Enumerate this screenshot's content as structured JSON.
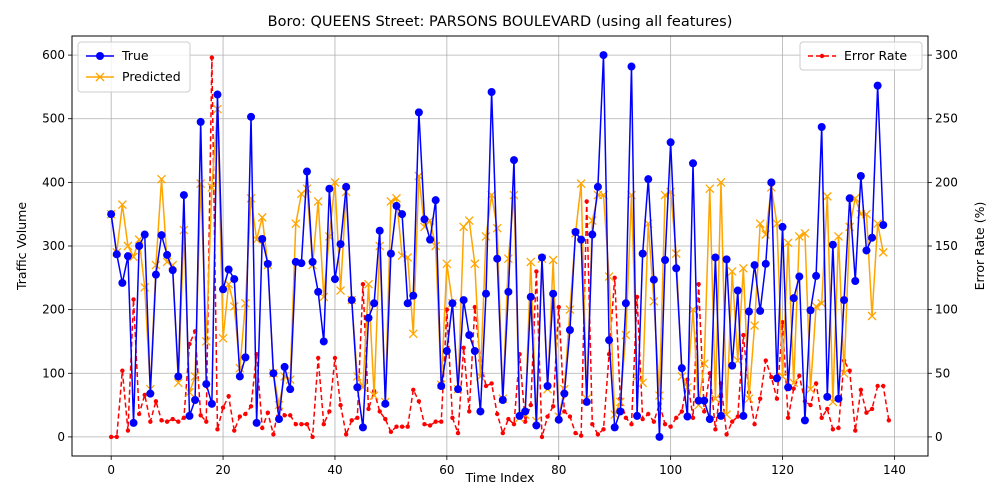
{
  "chart_data": {
    "type": "line",
    "title": "Boro: QUEENS Street: PARSONS BOULEVARD (using all features)",
    "xlabel": "Time Index",
    "ylabel": "Traffic Volume",
    "y2label": "Error Rate (%)",
    "xlim": [
      -7,
      146
    ],
    "ylim": [
      -30,
      630
    ],
    "y2lim": [
      -15,
      315
    ],
    "xticks": [
      0,
      20,
      40,
      60,
      80,
      100,
      120,
      140
    ],
    "yticks": [
      0,
      100,
      200,
      300,
      400,
      500,
      600
    ],
    "y2ticks": [
      0,
      50,
      100,
      150,
      200,
      250,
      300
    ],
    "grid": true,
    "legend_left": "upper-left",
    "legend_right": "upper-right",
    "series": [
      {
        "name": "True",
        "color": "#0000ff",
        "axis": "left",
        "marker": "circle",
        "line": "solid",
        "values": [
          350,
          287,
          242,
          284,
          22,
          300,
          318,
          68,
          255,
          317,
          286,
          262,
          95,
          380,
          33,
          58,
          495,
          83,
          52,
          538,
          232,
          263,
          248,
          95,
          125,
          503,
          22,
          311,
          272,
          100,
          28,
          110,
          75,
          275,
          273,
          417,
          275,
          228,
          150,
          390,
          248,
          303,
          393,
          215,
          78,
          15,
          187,
          210,
          324,
          52,
          288,
          363,
          350,
          210,
          222,
          510,
          342,
          310,
          372,
          80,
          135,
          210,
          75,
          215,
          160,
          135,
          40,
          225,
          542,
          280,
          58,
          228,
          435,
          33,
          40,
          220,
          18,
          282,
          80,
          225,
          27,
          68,
          168,
          322,
          310,
          55,
          318,
          393,
          600,
          152,
          15,
          40,
          210,
          582,
          33,
          288,
          405,
          247,
          0,
          278,
          463,
          265,
          108,
          32,
          430,
          57,
          57,
          28,
          282,
          33,
          279,
          112,
          230,
          33,
          197,
          270,
          198,
          272,
          400,
          92,
          330,
          78,
          218,
          252,
          26,
          199,
          253,
          487,
          63,
          302,
          60,
          215,
          375,
          245,
          410,
          293,
          313,
          552,
          333
        ]
      },
      {
        "name": "Predicted",
        "color": "#ffa500",
        "axis": "left",
        "marker": "x",
        "line": "solid",
        "values": [
          350,
          290,
          365,
          300,
          283,
          310,
          235,
          75,
          270,
          405,
          275,
          270,
          85,
          325,
          70,
          95,
          398,
          150,
          392,
          515,
          155,
          240,
          205,
          108,
          210,
          375,
          310,
          345,
          270,
          100,
          50,
          95,
          90,
          335,
          382,
          390,
          270,
          370,
          220,
          315,
          400,
          230,
          385,
          215,
          95,
          78,
          240,
          65,
          300,
          55,
          370,
          375,
          285,
          282,
          162,
          410,
          330,
          340,
          300,
          82,
          272,
          210,
          75,
          330,
          340,
          272,
          95,
          315,
          380,
          328,
          60,
          280,
          380,
          30,
          35,
          275,
          25,
          280,
          75,
          278,
          32,
          75,
          200,
          320,
          398,
          60,
          340,
          380,
          380,
          252,
          35,
          55,
          160,
          380,
          95,
          85,
          335,
          213,
          65,
          380,
          385,
          288,
          95,
          78,
          200,
          50,
          115,
          390,
          60,
          400,
          35,
          260,
          120,
          265,
          60,
          175,
          335,
          318,
          392,
          335,
          95,
          305,
          85,
          315,
          320,
          75,
          205,
          210,
          378,
          55,
          315,
          100,
          330,
          375,
          350,
          350,
          190,
          335,
          290
        ]
      },
      {
        "name": "Error Rate",
        "color": "#ff0000",
        "axis": "right",
        "marker": "point",
        "line": "dashed",
        "values": [
          0,
          0,
          52,
          5,
          108,
          18,
          33,
          12,
          28,
          13,
          12,
          14,
          12,
          15,
          73,
          83,
          17,
          12,
          298,
          6,
          23,
          32,
          5,
          16,
          18,
          24,
          65,
          7,
          19,
          2,
          25,
          17,
          17,
          10,
          10,
          10,
          0,
          62,
          10,
          20,
          62,
          25,
          2,
          13,
          15,
          120,
          22,
          36,
          20,
          14,
          4,
          8,
          8,
          8,
          37,
          28,
          10,
          9,
          12,
          12,
          100,
          15,
          3,
          70,
          20,
          102,
          60,
          40,
          42,
          18,
          3,
          14,
          10,
          65,
          12,
          25,
          130,
          0,
          16,
          24,
          102,
          20,
          16,
          3,
          1,
          185,
          10,
          2,
          6,
          65,
          125,
          30,
          15,
          10,
          110,
          14,
          18,
          12,
          26,
          10,
          8,
          15,
          20,
          45,
          15,
          120,
          20,
          50,
          6,
          42,
          2,
          12,
          16,
          80,
          35,
          10,
          30,
          60,
          47,
          30,
          90,
          15,
          38,
          48,
          28,
          25,
          42,
          15,
          22,
          6,
          7,
          60,
          52,
          5,
          37,
          19,
          22,
          40,
          40,
          13
        ]
      }
    ]
  }
}
